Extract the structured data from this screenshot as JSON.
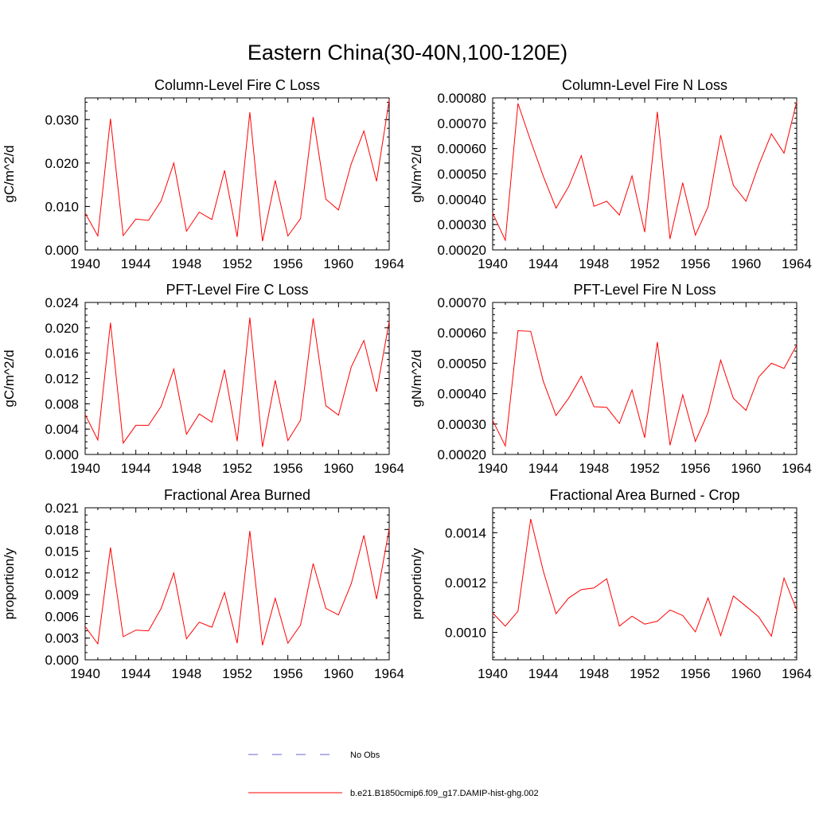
{
  "figure": {
    "title": "Eastern China(30-40N,100-120E)",
    "legend": [
      {
        "label": "No Obs",
        "color": "#6666cc",
        "dash": "dashed"
      },
      {
        "label": "b.e21.B1850cmip6.f09_g17.DAMIP-hist-ghg.002",
        "color": "#ff0000",
        "dash": "solid"
      }
    ]
  },
  "chart_data": [
    {
      "type": "line",
      "title": "Column-Level Fire C Loss",
      "ylabel": "gC/m^2/d",
      "xlim": [
        1940,
        1964
      ],
      "xticks": [
        1940,
        1944,
        1948,
        1952,
        1956,
        1960,
        1964
      ],
      "ylim": [
        0,
        0.035
      ],
      "yticks": [
        "0.000",
        "0.010",
        "0.020",
        "0.030"
      ],
      "ytick_values": [
        0,
        0.01,
        0.02,
        0.03
      ],
      "yminor": 0.002,
      "x": [
        1940,
        1941,
        1942,
        1943,
        1944,
        1945,
        1946,
        1947,
        1948,
        1949,
        1950,
        1951,
        1952,
        1953,
        1954,
        1955,
        1956,
        1957,
        1958,
        1959,
        1960,
        1961,
        1962,
        1963,
        1964
      ],
      "series": [
        {
          "color": "#ff0000",
          "values": [
            0.0085,
            0.0032,
            0.0302,
            0.0033,
            0.0071,
            0.0068,
            0.0113,
            0.02,
            0.0043,
            0.0087,
            0.007,
            0.0183,
            0.003,
            0.0317,
            0.002,
            0.016,
            0.0032,
            0.0072,
            0.0306,
            0.0117,
            0.0092,
            0.0198,
            0.0274,
            0.0158,
            0.0345
          ]
        }
      ]
    },
    {
      "type": "line",
      "title": "Column-Level Fire N Loss",
      "ylabel": "gN/m^2/d",
      "xlim": [
        1940,
        1964
      ],
      "xticks": [
        1940,
        1944,
        1948,
        1952,
        1956,
        1960,
        1964
      ],
      "ylim": [
        0.0002,
        0.0008
      ],
      "yticks": [
        "0.00020",
        "0.00030",
        "0.00040",
        "0.00050",
        "0.00060",
        "0.00070",
        "0.00080"
      ],
      "ytick_values": [
        0.0002,
        0.0003,
        0.0004,
        0.0005,
        0.0006,
        0.0007,
        0.0008
      ],
      "yminor": 2e-05,
      "x": [
        1940,
        1941,
        1942,
        1943,
        1944,
        1945,
        1946,
        1947,
        1948,
        1949,
        1950,
        1951,
        1952,
        1953,
        1954,
        1955,
        1956,
        1957,
        1958,
        1959,
        1960,
        1961,
        1962,
        1963,
        1964
      ],
      "series": [
        {
          "color": "#ff0000",
          "values": [
            0.000345,
            0.000238,
            0.000778,
            0.00063,
            0.00049,
            0.000365,
            0.00045,
            0.000572,
            0.000372,
            0.000392,
            0.000338,
            0.000492,
            0.00027,
            0.000745,
            0.000243,
            0.000465,
            0.000258,
            0.00037,
            0.000653,
            0.000455,
            0.000392,
            0.000535,
            0.000658,
            0.000582,
            0.000785
          ]
        }
      ]
    },
    {
      "type": "line",
      "title": "PFT-Level Fire C Loss",
      "ylabel": "gC/m^2/d",
      "xlim": [
        1940,
        1964
      ],
      "xticks": [
        1940,
        1944,
        1948,
        1952,
        1956,
        1960,
        1964
      ],
      "ylim": [
        0,
        0.024
      ],
      "yticks": [
        "0.000",
        "0.004",
        "0.008",
        "0.012",
        "0.016",
        "0.020",
        "0.024"
      ],
      "ytick_values": [
        0,
        0.004,
        0.008,
        0.012,
        0.016,
        0.02,
        0.024
      ],
      "yminor": 0.001,
      "x": [
        1940,
        1941,
        1942,
        1943,
        1944,
        1945,
        1946,
        1947,
        1948,
        1949,
        1950,
        1951,
        1952,
        1953,
        1954,
        1955,
        1956,
        1957,
        1958,
        1959,
        1960,
        1961,
        1962,
        1963,
        1964
      ],
      "series": [
        {
          "color": "#ff0000",
          "values": [
            0.0063,
            0.0023,
            0.0208,
            0.0018,
            0.0046,
            0.0046,
            0.0076,
            0.0135,
            0.0032,
            0.0064,
            0.0051,
            0.0134,
            0.0021,
            0.0216,
            0.0012,
            0.0117,
            0.0022,
            0.0054,
            0.0215,
            0.0077,
            0.0062,
            0.0138,
            0.018,
            0.0099,
            0.021
          ]
        }
      ]
    },
    {
      "type": "line",
      "title": "PFT-Level Fire N Loss",
      "ylabel": "gN/m^2/d",
      "xlim": [
        1940,
        1964
      ],
      "xticks": [
        1940,
        1944,
        1948,
        1952,
        1956,
        1960,
        1964
      ],
      "ylim": [
        0.0002,
        0.0007
      ],
      "yticks": [
        "0.00020",
        "0.00030",
        "0.00040",
        "0.00050",
        "0.00060",
        "0.00070"
      ],
      "ytick_values": [
        0.0002,
        0.0003,
        0.0004,
        0.0005,
        0.0006,
        0.0007
      ],
      "yminor": 2e-05,
      "x": [
        1940,
        1941,
        1942,
        1943,
        1944,
        1945,
        1946,
        1947,
        1948,
        1949,
        1950,
        1951,
        1952,
        1953,
        1954,
        1955,
        1956,
        1957,
        1958,
        1959,
        1960,
        1961,
        1962,
        1963,
        1964
      ],
      "series": [
        {
          "color": "#ff0000",
          "values": [
            0.000312,
            0.000228,
            0.000607,
            0.000605,
            0.00044,
            0.000328,
            0.000385,
            0.000457,
            0.000357,
            0.000355,
            0.000302,
            0.000412,
            0.000255,
            0.00057,
            0.00023,
            0.000396,
            0.000243,
            0.000338,
            0.00051,
            0.000385,
            0.000345,
            0.000455,
            0.0005,
            0.000483,
            0.00056
          ]
        }
      ]
    },
    {
      "type": "line",
      "title": "Fractional Area Burned",
      "ylabel": "proportion/y",
      "xlim": [
        1940,
        1964
      ],
      "xticks": [
        1940,
        1944,
        1948,
        1952,
        1956,
        1960,
        1964
      ],
      "ylim": [
        0,
        0.021
      ],
      "yticks": [
        "0.000",
        "0.003",
        "0.006",
        "0.009",
        "0.012",
        "0.015",
        "0.018",
        "0.021"
      ],
      "ytick_values": [
        0,
        0.003,
        0.006,
        0.009,
        0.012,
        0.015,
        0.018,
        0.021
      ],
      "yminor": 0.001,
      "x": [
        1940,
        1941,
        1942,
        1943,
        1944,
        1945,
        1946,
        1947,
        1948,
        1949,
        1950,
        1951,
        1952,
        1953,
        1954,
        1955,
        1956,
        1957,
        1958,
        1959,
        1960,
        1961,
        1962,
        1963,
        1964
      ],
      "series": [
        {
          "color": "#ff0000",
          "values": [
            0.0046,
            0.0022,
            0.0155,
            0.0032,
            0.0041,
            0.004,
            0.0071,
            0.012,
            0.0029,
            0.0052,
            0.0045,
            0.0093,
            0.0023,
            0.0178,
            0.002,
            0.0085,
            0.0023,
            0.0048,
            0.0133,
            0.0071,
            0.0062,
            0.0105,
            0.0172,
            0.0084,
            0.0181
          ]
        }
      ]
    },
    {
      "type": "line",
      "title": "Fractional Area Burned - Crop",
      "ylabel": "proportion/y",
      "xlim": [
        1940,
        1964
      ],
      "xticks": [
        1940,
        1944,
        1948,
        1952,
        1956,
        1960,
        1964
      ],
      "ylim": [
        0.00089,
        0.0015
      ],
      "yticks": [
        "0.0010",
        "0.0012",
        "0.0014"
      ],
      "ytick_values": [
        0.001,
        0.0012,
        0.0014
      ],
      "yminor": 2e-05,
      "x": [
        1940,
        1941,
        1942,
        1943,
        1944,
        1945,
        1946,
        1947,
        1948,
        1949,
        1950,
        1951,
        1952,
        1953,
        1954,
        1955,
        1956,
        1957,
        1958,
        1959,
        1960,
        1961,
        1962,
        1963,
        1964
      ],
      "series": [
        {
          "color": "#ff0000",
          "values": [
            0.001078,
            0.001025,
            0.001085,
            0.001455,
            0.001245,
            0.001075,
            0.001138,
            0.001172,
            0.001178,
            0.001215,
            0.001025,
            0.001065,
            0.001033,
            0.001045,
            0.00109,
            0.001068,
            0.001002,
            0.001138,
            0.000987,
            0.001146,
            0.001105,
            0.001062,
            0.000985,
            0.001218,
            0.00109
          ]
        }
      ]
    }
  ]
}
